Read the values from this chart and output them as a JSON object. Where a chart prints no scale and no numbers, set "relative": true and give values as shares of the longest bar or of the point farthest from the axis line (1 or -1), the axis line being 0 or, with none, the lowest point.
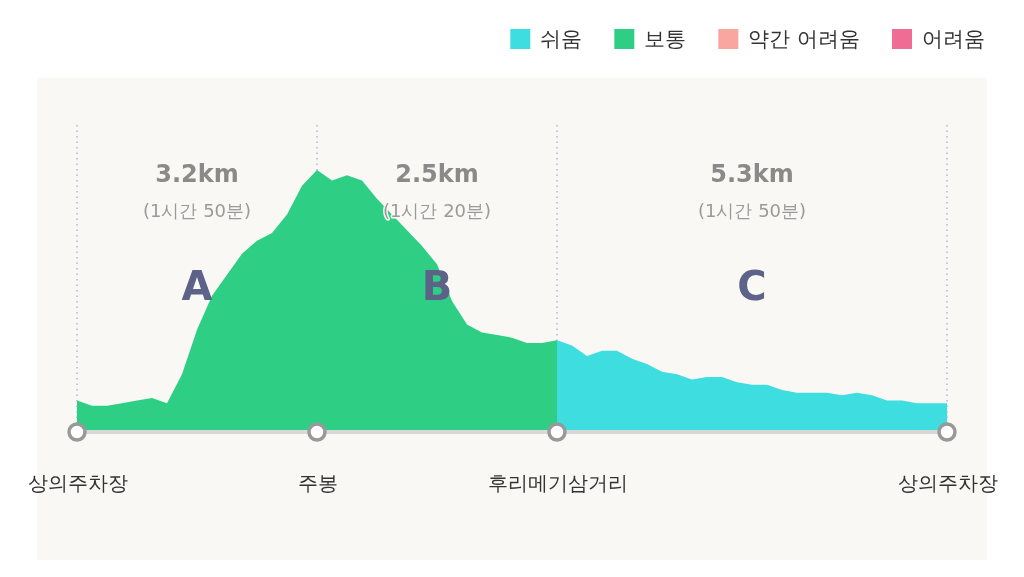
{
  "chart_data": {
    "type": "area",
    "relative": true,
    "legend": "top right",
    "grid": "x",
    "categories": [
      "상의주차장",
      null,
      null,
      null,
      null,
      null,
      null,
      null,
      null,
      null,
      null,
      null,
      null,
      null,
      null,
      null,
      "주봉",
      null,
      null,
      null,
      null,
      null,
      null,
      null,
      null,
      null,
      null,
      null,
      null,
      null,
      null,
      null,
      "후리메기삼거리",
      null,
      null,
      null,
      null,
      null,
      null,
      null,
      null,
      null,
      null,
      null,
      null,
      null,
      null,
      null,
      null,
      null,
      null,
      null,
      null,
      null,
      null,
      null,
      null,
      null,
      "상의주차장"
    ],
    "series": [
      {
        "name": "쉬움",
        "color": "#3ddde0",
        "values": [
          null,
          null,
          null,
          null,
          null,
          null,
          null,
          null,
          null,
          null,
          null,
          null,
          null,
          null,
          null,
          null,
          null,
          null,
          null,
          null,
          null,
          null,
          null,
          null,
          null,
          null,
          null,
          null,
          null,
          null,
          null,
          null,
          0.35,
          0.33,
          0.29,
          0.31,
          0.31,
          0.28,
          0.26,
          0.23,
          0.22,
          0.2,
          0.21,
          0.21,
          0.19,
          0.18,
          0.18,
          0.16,
          0.15,
          0.15,
          0.15,
          0.14,
          0.15,
          0.14,
          0.12,
          0.12,
          0.11,
          0.11,
          0.11
        ]
      },
      {
        "name": "보통",
        "color": "#2ecf85",
        "values": [
          0.12,
          0.1,
          0.1,
          0.11,
          0.12,
          0.13,
          0.11,
          0.22,
          0.39,
          0.52,
          0.6,
          0.68,
          0.73,
          0.76,
          0.83,
          0.94,
          1,
          0.96,
          0.98,
          0.96,
          0.89,
          0.83,
          0.77,
          0.71,
          0.64,
          0.5,
          0.41,
          0.38,
          0.37,
          0.36,
          0.34,
          0.34,
          0.35,
          null,
          null,
          null,
          null,
          null,
          null,
          null,
          null,
          null,
          null,
          null,
          null,
          null,
          null,
          null,
          null,
          null,
          null,
          null,
          null,
          null,
          null,
          null,
          null,
          null,
          null
        ]
      },
      {
        "name": "약간 어려움",
        "color": "#f9a79e",
        "values": [
          null,
          null,
          null,
          null,
          null,
          null,
          null,
          null,
          null,
          null,
          null,
          null,
          null,
          null,
          null,
          null,
          null,
          null,
          null,
          null,
          null,
          null,
          null,
          null,
          null,
          null,
          null,
          null,
          null,
          null,
          null,
          null,
          null,
          null,
          null,
          null,
          null,
          null,
          null,
          null,
          null,
          null,
          null,
          null,
          null,
          null,
          null,
          null,
          null,
          null,
          null,
          null,
          null,
          null,
          null,
          null,
          null,
          null,
          null
        ]
      },
      {
        "name": "어려움",
        "color": "#ef6d95",
        "values": [
          null,
          null,
          null,
          null,
          null,
          null,
          null,
          null,
          null,
          null,
          null,
          null,
          null,
          null,
          null,
          null,
          null,
          null,
          null,
          null,
          null,
          null,
          null,
          null,
          null,
          null,
          null,
          null,
          null,
          null,
          null,
          null,
          null,
          null,
          null,
          null,
          null,
          null,
          null,
          null,
          null,
          null,
          null,
          null,
          null,
          null,
          null,
          null,
          null,
          null,
          null,
          null,
          null,
          null,
          null,
          null,
          null,
          null,
          null
        ]
      }
    ],
    "annotations": [
      "3.2km",
      "(1시간 50분)",
      "A",
      "2.5km",
      "(1시간 20분)",
      "B",
      "5.3km",
      "(1시간 50분)",
      "C"
    ]
  }
}
